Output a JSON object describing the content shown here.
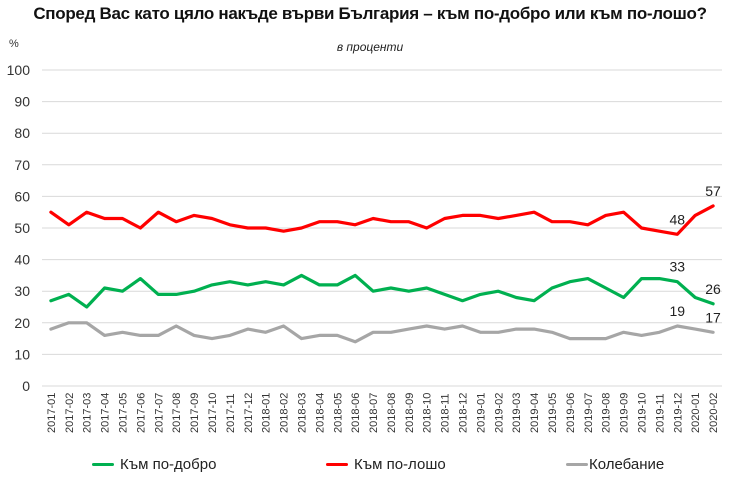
{
  "chart_data": {
    "type": "line",
    "title": "Според Вас като цяло накъде върви България – към по-добро или към по-лошо?",
    "subtitle": "в проценти",
    "ylabel": "%",
    "xlabel": "",
    "ylim": [
      0,
      100
    ],
    "yticks": [
      0,
      10,
      20,
      30,
      40,
      50,
      60,
      70,
      80,
      90,
      100
    ],
    "grid": true,
    "legend_position": "bottom",
    "x": [
      "2017-01",
      "2017-02",
      "2017-03",
      "2017-04",
      "2017-05",
      "2017-06",
      "2017-07",
      "2017-08",
      "2017-09",
      "2017-10",
      "2017-11",
      "2017-12",
      "2018-01",
      "2018-02",
      "2018-03",
      "2018-04",
      "2018-05",
      "2018-06",
      "2018-07",
      "2018-08",
      "2018-09",
      "2018-10",
      "2018-11",
      "2018-12",
      "2019-01",
      "2019-02",
      "2019-03",
      "2019-04",
      "2019-05",
      "2019-06",
      "2019-07",
      "2019-08",
      "2019-09",
      "2019-10",
      "2019-11",
      "2019-12",
      "2020-01",
      "2020-02"
    ],
    "series": [
      {
        "name": "Към по-добро",
        "color": "#00B050",
        "values": [
          27,
          29,
          25,
          31,
          30,
          34,
          29,
          29,
          30,
          32,
          33,
          32,
          33,
          32,
          35,
          32,
          32,
          35,
          30,
          31,
          30,
          31,
          29,
          27,
          29,
          30,
          28,
          27,
          31,
          33,
          34,
          31,
          28,
          34,
          34,
          33,
          28,
          26
        ],
        "labels": [
          {
            "index": 35,
            "text": "33"
          },
          {
            "index": 37,
            "text": "26"
          }
        ]
      },
      {
        "name": "Към по-лошо",
        "color": "#FF0000",
        "values": [
          55,
          51,
          55,
          53,
          53,
          50,
          55,
          52,
          54,
          53,
          51,
          50,
          50,
          49,
          50,
          52,
          52,
          51,
          53,
          52,
          52,
          50,
          53,
          54,
          54,
          53,
          54,
          55,
          52,
          52,
          51,
          54,
          55,
          50,
          49,
          48,
          54,
          57
        ],
        "labels": [
          {
            "index": 35,
            "text": "48"
          },
          {
            "index": 37,
            "text": "57"
          }
        ]
      },
      {
        "name": "Колебание",
        "color": "#A6A6A6",
        "values": [
          18,
          20,
          20,
          16,
          17,
          16,
          16,
          19,
          16,
          15,
          16,
          18,
          17,
          19,
          15,
          16,
          16,
          14,
          17,
          17,
          18,
          19,
          18,
          19,
          17,
          17,
          18,
          18,
          17,
          15,
          15,
          15,
          17,
          16,
          17,
          19,
          18,
          17
        ],
        "labels": [
          {
            "index": 35,
            "text": "19"
          },
          {
            "index": 37,
            "text": "17"
          }
        ]
      }
    ]
  }
}
